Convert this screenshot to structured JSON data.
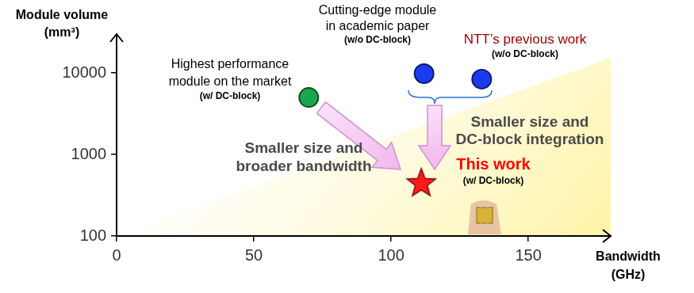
{
  "chart_data": {
    "type": "scatter",
    "xlabel": [
      "Bandwidth",
      "(GHz)"
    ],
    "ylabel": [
      "Module volume",
      "(mm³)"
    ],
    "log": "y",
    "grid": false,
    "xlim": [
      0,
      180
    ],
    "xticks": [
      0,
      50,
      100,
      150
    ],
    "ylim": [
      100,
      30000
    ],
    "yticks": [
      100,
      1000,
      10000
    ],
    "series": [
      {
        "name": [
          "Highest performance",
          "module on the market"
        ],
        "note": "(w/ DC-block)",
        "color": "#1aa64b",
        "marker": "circle",
        "x": [
          70
        ],
        "values": [
          5000
        ]
      },
      {
        "name": [
          "Cutting-edge module",
          "in academic paper"
        ],
        "note": "(w/o DC-block)",
        "color": "#1a3cf0",
        "marker": "circle",
        "x": [
          112
        ],
        "values": [
          9800
        ]
      },
      {
        "name": [
          "NTT’s previous work"
        ],
        "note": "(w/o DC-block)",
        "color": "#1a3cf0",
        "marker": "circle",
        "x": [
          133
        ],
        "values": [
          8400
        ]
      },
      {
        "name": [
          "This work"
        ],
        "note": "(w/ DC-block)",
        "color": "#ff1a1a",
        "marker": "star",
        "x": [
          111
        ],
        "values": [
          450
        ]
      }
    ],
    "annotations": [
      {
        "text": [
          "Smaller size and",
          "broader bandwidth"
        ]
      },
      {
        "text": [
          "Smaller size and",
          "DC-block integration"
        ]
      }
    ]
  }
}
